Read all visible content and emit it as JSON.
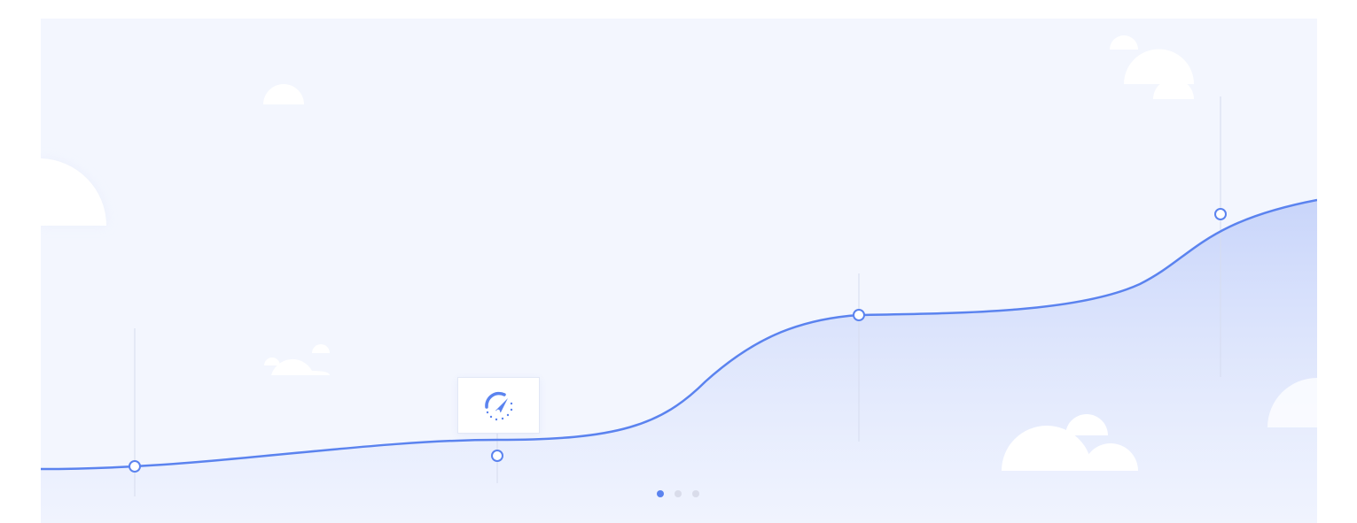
{
  "colors": {
    "background": "#f3f6fe",
    "line": "#5b83ef",
    "area_top": "#c6d3fa",
    "area_bottom": "#eef2fe",
    "cloud": "#ffffff",
    "dot_active": "#5b83ef",
    "dot_inactive": "#d9dcea"
  },
  "carousel": {
    "total_slides": 3,
    "active_index": 0
  },
  "milestones": [
    {
      "name": "milestone-1",
      "icon": null
    },
    {
      "name": "milestone-2",
      "icon": "speedometer-icon"
    },
    {
      "name": "milestone-3",
      "icon": null
    },
    {
      "name": "milestone-4",
      "icon": null
    }
  ]
}
